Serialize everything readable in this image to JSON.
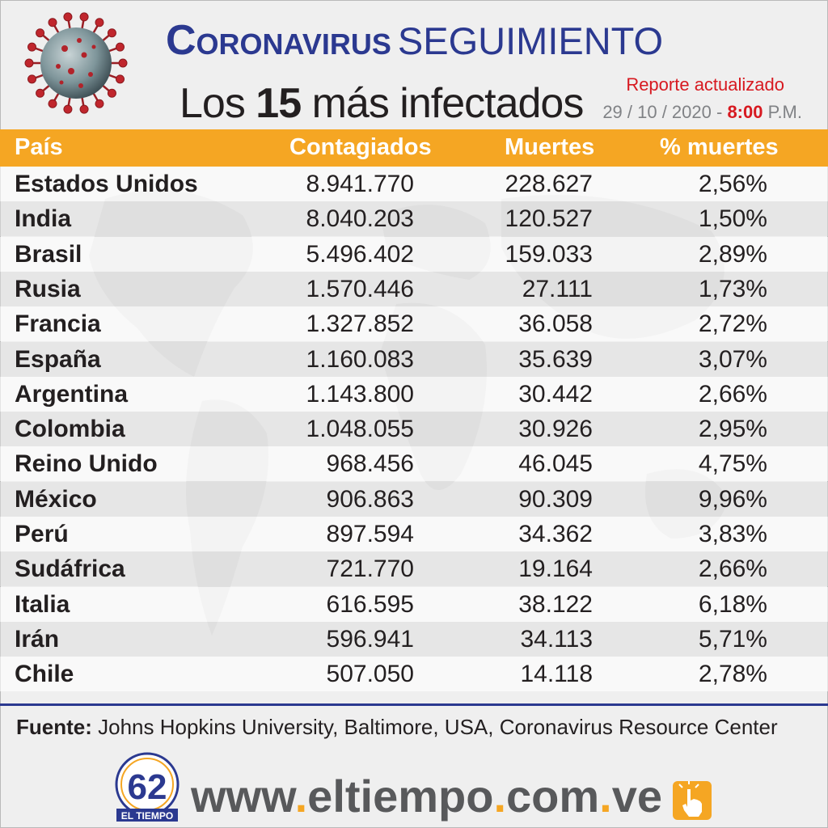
{
  "header": {
    "title_main": "Coronavirus",
    "title_secondary": "seguimiento",
    "subtitle_prefix": "Los",
    "subtitle_number": "15",
    "subtitle_suffix": "más infectados",
    "report_label": "Reporte actualizado",
    "report_date": "29 / 10 / 2020 -",
    "report_time": "8:00",
    "report_period": "P.M."
  },
  "table": {
    "columns": [
      "País",
      "Contagiados",
      "Muertes",
      "% muertes"
    ],
    "rows": [
      {
        "country": "Estados Unidos",
        "cases": "8.941.770",
        "deaths": "228.627",
        "pct": "2,56%"
      },
      {
        "country": "India",
        "cases": "8.040.203",
        "deaths": "120.527",
        "pct": "1,50%"
      },
      {
        "country": "Brasil",
        "cases": "5.496.402",
        "deaths": "159.033",
        "pct": "2,89%"
      },
      {
        "country": "Rusia",
        "cases": "1.570.446",
        "deaths": "27.111",
        "pct": "1,73%"
      },
      {
        "country": "Francia",
        "cases": "1.327.852",
        "deaths": "36.058",
        "pct": "2,72%"
      },
      {
        "country": "España",
        "cases": "1.160.083",
        "deaths": "35.639",
        "pct": "3,07%"
      },
      {
        "country": "Argentina",
        "cases": "1.143.800",
        "deaths": "30.442",
        "pct": "2,66%"
      },
      {
        "country": "Colombia",
        "cases": "1.048.055",
        "deaths": "30.926",
        "pct": "2,95%"
      },
      {
        "country": "Reino Unido",
        "cases": "968.456",
        "deaths": "46.045",
        "pct": "4,75%"
      },
      {
        "country": "México",
        "cases": "906.863",
        "deaths": "90.309",
        "pct": "9,96%"
      },
      {
        "country": "Perú",
        "cases": "897.594",
        "deaths": "34.362",
        "pct": "3,83%"
      },
      {
        "country": "Sudáfrica",
        "cases": "721.770",
        "deaths": "19.164",
        "pct": "2,66%"
      },
      {
        "country": "Italia",
        "cases": "616.595",
        "deaths": "38.122",
        "pct": "6,18%"
      },
      {
        "country": "Irán",
        "cases": "596.941",
        "deaths": "34.113",
        "pct": "5,71%"
      },
      {
        "country": "Chile",
        "cases": "507.050",
        "deaths": "14.118",
        "pct": "2,78%"
      }
    ]
  },
  "footer": {
    "source_label": "Fuente:",
    "source_text": "Johns Hopkins University, Baltimore, USA, Coronavirus Resource Center",
    "website_parts": [
      "www",
      ".",
      "eltiempo",
      ".",
      "com",
      ".",
      "ve"
    ],
    "logo_number": "62",
    "logo_text": "EL TIEMPO"
  },
  "colors": {
    "title_blue": "#2b3990",
    "header_orange": "#f5a623",
    "accent_red": "#d71920",
    "text_dark": "#231f20",
    "gray": "#808285"
  },
  "icons": {
    "virus": "coronavirus-icon",
    "logo": "el-tiempo-62-logo",
    "hand": "pointing-hand-icon"
  }
}
